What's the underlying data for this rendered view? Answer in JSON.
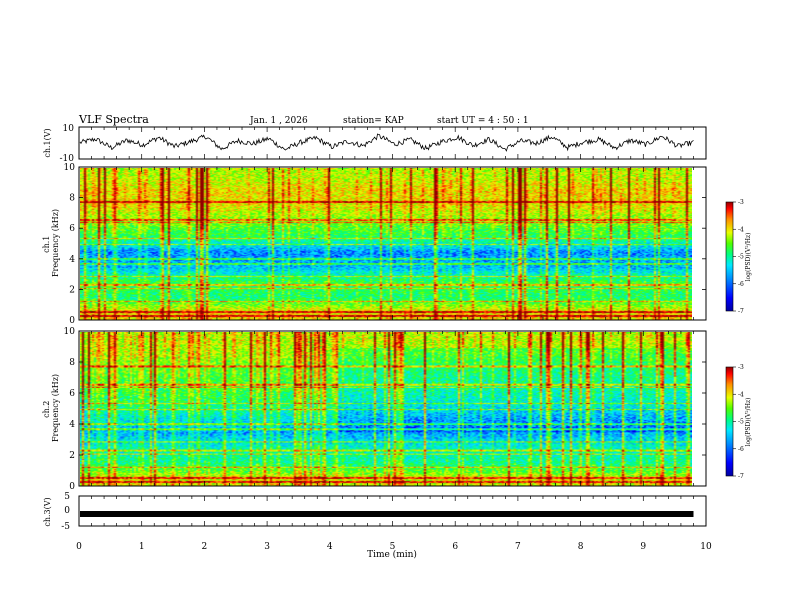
{
  "header": {
    "title": "VLF Spectra",
    "date": "Jan. 1 , 2026",
    "station": "station= KAP",
    "start_ut": "start UT =  4 : 50 : 1"
  },
  "colors": {
    "spectrogram_palette": [
      "#0000a0",
      "#0000ff",
      "#0090ff",
      "#00e8ff",
      "#00ff80",
      "#50ff00",
      "#e8ff00",
      "#ff9000",
      "#ff0000",
      "#900000"
    ],
    "trace": "#000000",
    "axes": "#000000",
    "background": "#ffffff"
  },
  "chart_data": [
    {
      "type": "line",
      "name": "ch1-voltage",
      "ylabel": "ch.1(V)",
      "ylim": [
        -10,
        10
      ],
      "yticks": [
        10,
        -10
      ],
      "x_range_min": [
        0,
        9.8
      ],
      "description_of_values": "fluctuating trace roughly between -5 and 5 V",
      "sampled_values": [
        0.2,
        2.5,
        -3.0,
        1.8,
        -1.2,
        3.5,
        -2.2,
        0.8,
        4.1,
        -3.8,
        1.5,
        -0.5,
        2.8,
        -4.2,
        0.3,
        3.2,
        -2.5,
        1.1,
        -1.8,
        4.5,
        -0.8,
        2.1,
        -3.4,
        0.9,
        3.7,
        -1.6,
        2.4,
        -4.0,
        1.3,
        -0.2,
        3.9,
        -2.8,
        0.6,
        2.2,
        -3.1,
        1.7,
        -1.0,
        4.3,
        -2.0,
        0.4
      ]
    },
    {
      "type": "heatmap",
      "name": "ch1-spectrogram",
      "ylabel": "ch.1\nFrequency (kHz)",
      "xlim": [
        0,
        10
      ],
      "ylim": [
        0,
        10
      ],
      "yticks": [
        0,
        2,
        4,
        6,
        8,
        10
      ],
      "data_extent_min": 9.8,
      "colorbar": {
        "label": "log(PSD)(V²/Hz)",
        "range": [
          -7,
          -3
        ],
        "ticks": [
          -3,
          -4,
          -5,
          -6,
          -7
        ]
      },
      "approx_log_psd_by_freq_khz": [
        [
          0.5,
          -4.2
        ],
        [
          1.5,
          -5.2
        ],
        [
          2.5,
          -5.0
        ],
        [
          3.5,
          -5.9
        ],
        [
          4.5,
          -6.1
        ],
        [
          5.5,
          -5.1
        ],
        [
          6.5,
          -4.7
        ],
        [
          7.5,
          -4.3
        ],
        [
          8.5,
          -4.2
        ],
        [
          9.5,
          -4.5
        ]
      ]
    },
    {
      "type": "heatmap",
      "name": "ch2-spectrogram",
      "ylabel": "ch.2\nFrequency (kHz)",
      "xlim": [
        0,
        10
      ],
      "ylim": [
        0,
        10
      ],
      "yticks": [
        0,
        2,
        4,
        6,
        8,
        10
      ],
      "data_extent_min": 9.8,
      "colorbar": {
        "label": "log(PSD)(V²/Hz)",
        "range": [
          -7,
          -3
        ],
        "ticks": [
          -3,
          -4,
          -5,
          -6,
          -7
        ]
      },
      "approx_log_psd_by_freq_khz": [
        [
          0.5,
          -4.4
        ],
        [
          1.5,
          -5.3
        ],
        [
          2.5,
          -5.5
        ],
        [
          3.5,
          -6.0
        ],
        [
          4.5,
          -5.6
        ],
        [
          5.5,
          -5.2
        ],
        [
          6.5,
          -5.0
        ],
        [
          7.5,
          -4.9
        ],
        [
          8.5,
          -4.6
        ],
        [
          9.5,
          -4.5
        ]
      ]
    },
    {
      "type": "line",
      "name": "ch3-voltage",
      "ylabel": "ch.3(V)",
      "ylim": [
        -5,
        5
      ],
      "yticks": [
        5,
        0,
        -5
      ],
      "constant_value": -1,
      "xlabel": "Time (min)",
      "xlim": [
        0,
        10
      ],
      "xticks": [
        0,
        1,
        2,
        3,
        4,
        5,
        6,
        7,
        8,
        9,
        10
      ]
    }
  ]
}
